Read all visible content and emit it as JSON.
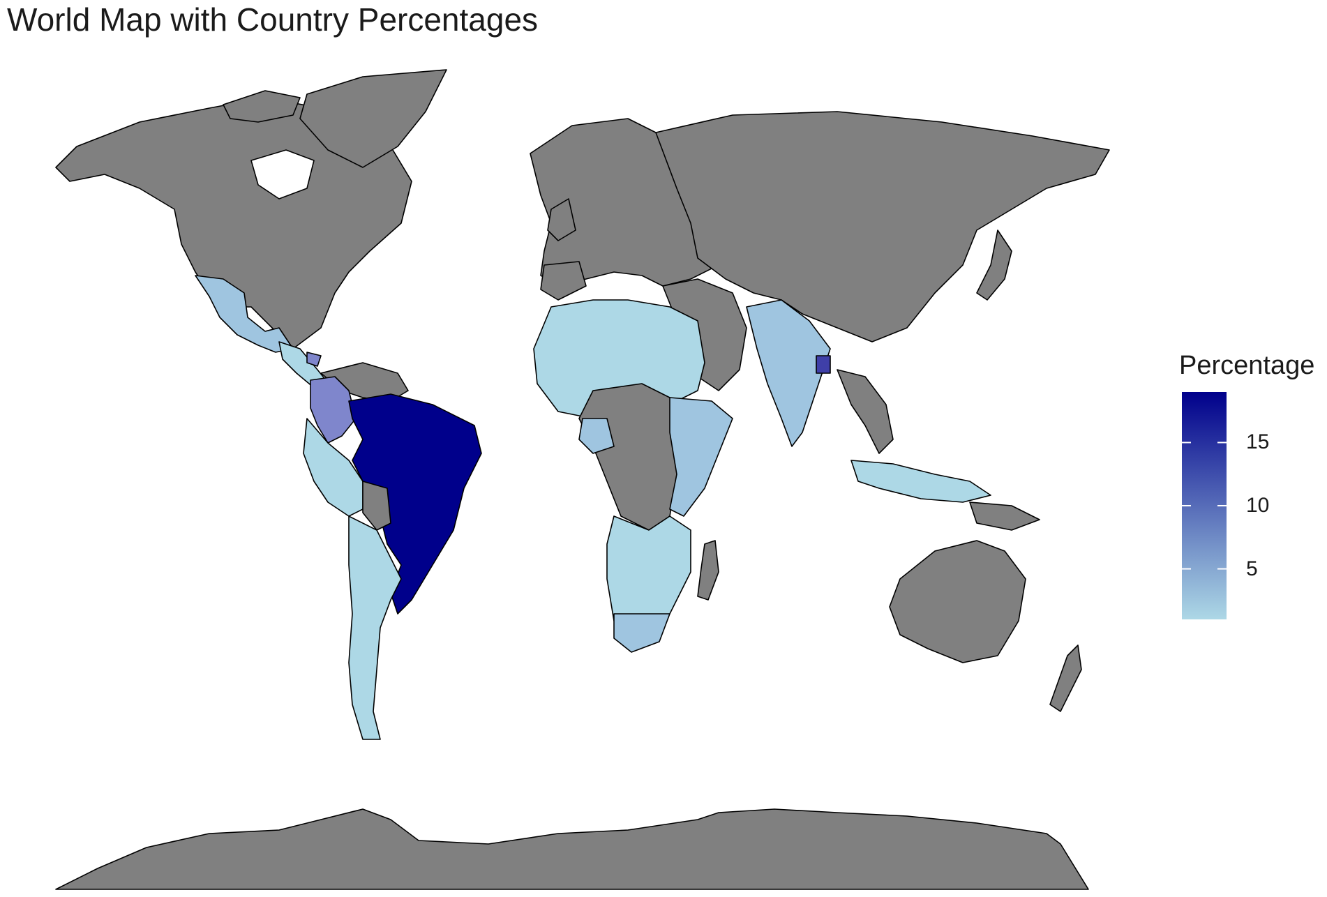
{
  "title": "World Map with Country Percentages",
  "map": {
    "projection": "Robinson",
    "no_data_color": "#808080",
    "border_color": "#000000",
    "fill_scale_low": "#ADD8E6",
    "fill_scale_high": "#00008B",
    "countries": [
      {
        "name": "Brazil",
        "percentage": 19
      },
      {
        "name": "Colombia",
        "percentage": 8
      },
      {
        "name": "Bangladesh",
        "percentage": 10
      },
      {
        "name": "Honduras",
        "percentage": 6
      },
      {
        "name": "Nigeria",
        "percentage": 5
      },
      {
        "name": "Ethiopia",
        "percentage": 5
      },
      {
        "name": "South Africa",
        "percentage": 4
      },
      {
        "name": "Tanzania",
        "percentage": 4
      },
      {
        "name": "India",
        "percentage": 3
      },
      {
        "name": "Mexico",
        "percentage": 3
      }
    ]
  },
  "chart_data": {
    "type": "heatmap",
    "legend": {
      "title": "Percentage",
      "ticks": [
        5,
        10,
        15
      ],
      "range": [
        1,
        19
      ],
      "placement": "right"
    }
  }
}
